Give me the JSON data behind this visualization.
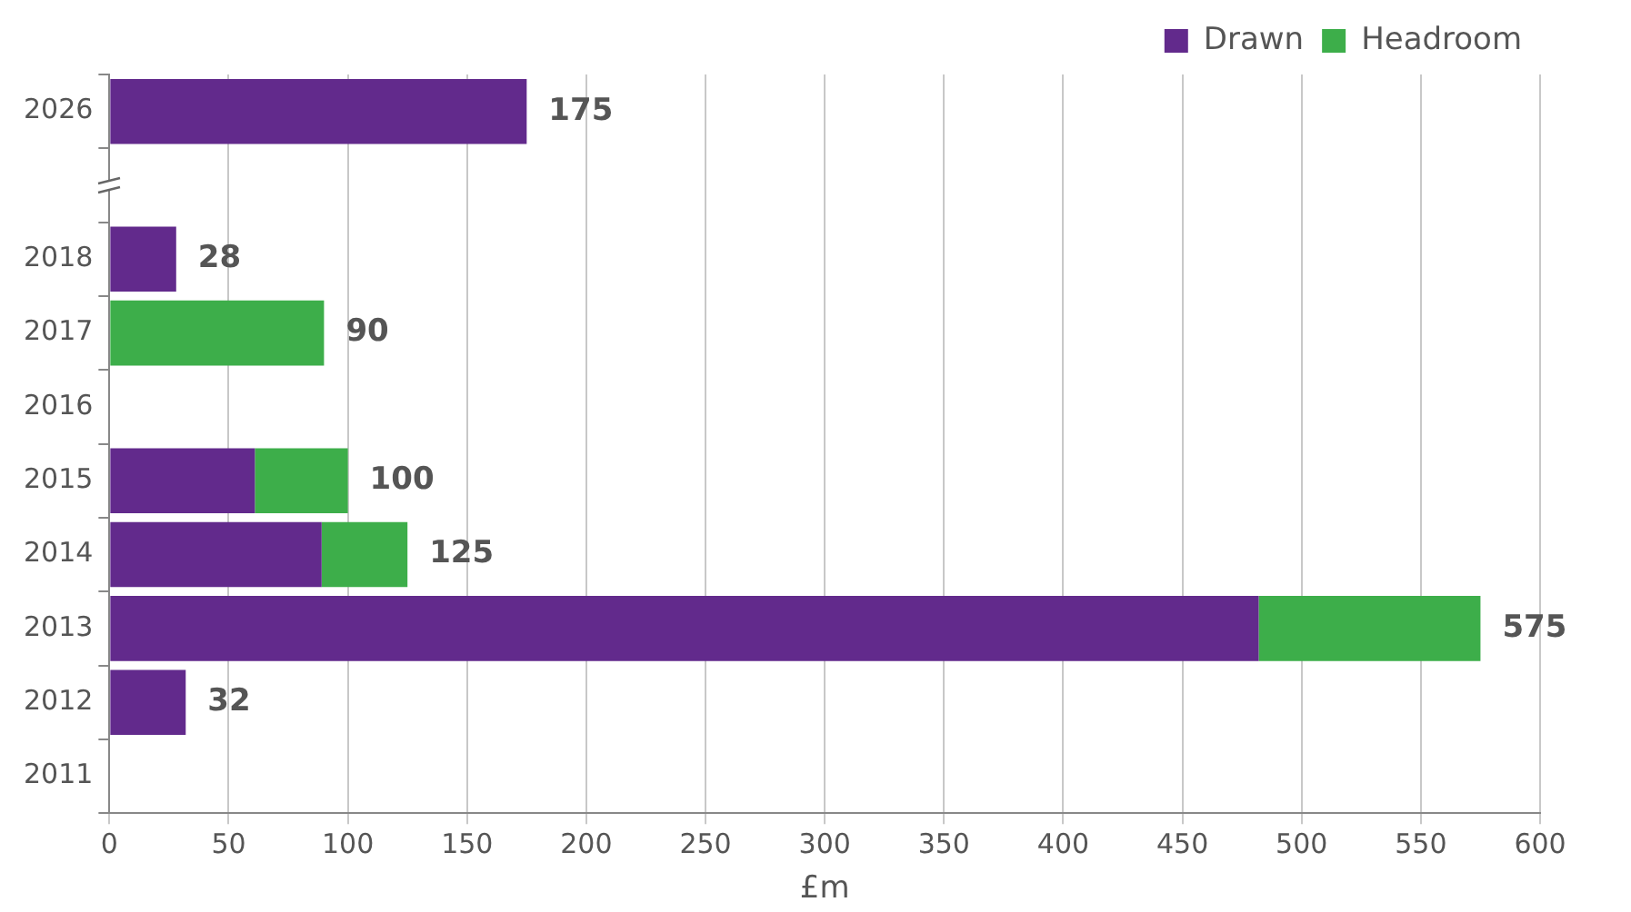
{
  "chart_data": {
    "type": "bar",
    "orientation": "horizontal",
    "stacked": true,
    "xlabel": "£m",
    "categories": [
      "2026",
      null,
      "2018",
      "2017",
      "2016",
      "2015",
      "2014",
      "2013",
      "2012",
      "2011"
    ],
    "series": [
      {
        "name": "Drawn",
        "color": "#622a8c",
        "values": [
          175,
          null,
          28,
          0,
          null,
          61,
          89,
          482,
          32,
          null
        ]
      },
      {
        "name": "Headroom",
        "color": "#3dae4a",
        "values": [
          null,
          null,
          null,
          90,
          null,
          39,
          36,
          93,
          null,
          null
        ]
      }
    ],
    "totals": [
      "175",
      null,
      "28",
      "90",
      null,
      "100",
      "125",
      "575",
      "32",
      null
    ],
    "xlim": [
      0,
      600
    ],
    "xticks": [
      0,
      50,
      100,
      150,
      200,
      250,
      300,
      350,
      400,
      450,
      500,
      550,
      600
    ],
    "grid": "x",
    "legend": "top right"
  }
}
